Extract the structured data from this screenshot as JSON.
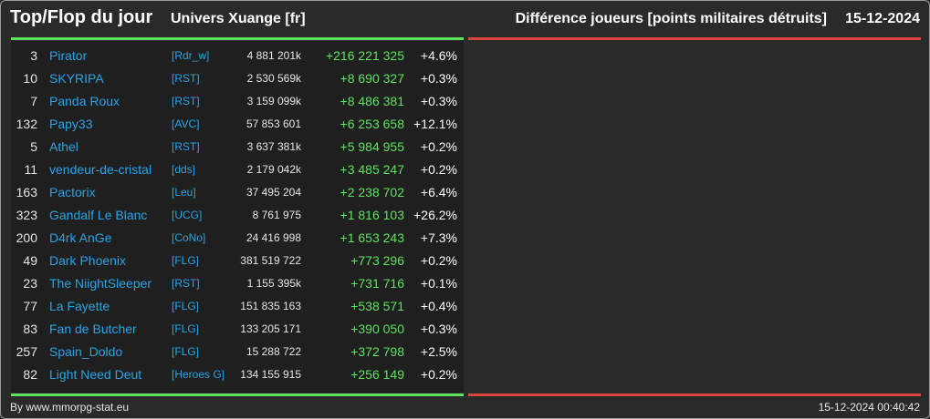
{
  "header": {
    "title": "Top/Flop du jour",
    "universe": "Univers Xuange [fr]",
    "metric": "Différence joueurs [points militaires détruits]",
    "date": "15-12-2024"
  },
  "colors": {
    "background": "#2a2a2a",
    "panel": "#1f1f1f",
    "top_accent": "#5de35d",
    "flop_accent": "#e0453d",
    "link": "#2aa3e6",
    "positive": "#5de35d"
  },
  "top": [
    {
      "rank": "3",
      "name": "Pirator",
      "alliance": "[Rdr_w]",
      "points": "4 881 201k",
      "diff": "+216 221 325",
      "pct": "+4.6%"
    },
    {
      "rank": "10",
      "name": "SKYRIPA",
      "alliance": "[RST]",
      "points": "2 530 569k",
      "diff": "+8 690 327",
      "pct": "+0.3%"
    },
    {
      "rank": "7",
      "name": "Panda Roux",
      "alliance": "[RST]",
      "points": "3 159 099k",
      "diff": "+8 486 381",
      "pct": "+0.3%"
    },
    {
      "rank": "132",
      "name": "Papy33",
      "alliance": "[AVC]",
      "points": "57 853 601",
      "diff": "+6 253 658",
      "pct": "+12.1%"
    },
    {
      "rank": "5",
      "name": "Athel",
      "alliance": "[RST]",
      "points": "3 637 381k",
      "diff": "+5 984 955",
      "pct": "+0.2%"
    },
    {
      "rank": "11",
      "name": "vendeur-de-cristal",
      "alliance": "[dds]",
      "points": "2 179 042k",
      "diff": "+3 485 247",
      "pct": "+0.2%"
    },
    {
      "rank": "163",
      "name": "Pactorix",
      "alliance": "[Leu]",
      "points": "37 495 204",
      "diff": "+2 238 702",
      "pct": "+6.4%"
    },
    {
      "rank": "323",
      "name": "Gandalf Le Blanc",
      "alliance": "[UCG]",
      "points": "8 761 975",
      "diff": "+1 816 103",
      "pct": "+26.2%"
    },
    {
      "rank": "200",
      "name": "D4rk AnGe",
      "alliance": "[CoNo]",
      "points": "24 416 998",
      "diff": "+1 653 243",
      "pct": "+7.3%"
    },
    {
      "rank": "49",
      "name": "Dark Phoenix",
      "alliance": "[FLG]",
      "points": "381 519 722",
      "diff": "+773 296",
      "pct": "+0.2%"
    },
    {
      "rank": "23",
      "name": "The NiightSleeper",
      "alliance": "[RST]",
      "points": "1 155 395k",
      "diff": "+731 716",
      "pct": "+0.1%"
    },
    {
      "rank": "77",
      "name": "La Fayette",
      "alliance": "[FLG]",
      "points": "151 835 163",
      "diff": "+538 571",
      "pct": "+0.4%"
    },
    {
      "rank": "83",
      "name": "Fan de Butcher",
      "alliance": "[FLG]",
      "points": "133 205 171",
      "diff": "+390 050",
      "pct": "+0.3%"
    },
    {
      "rank": "257",
      "name": "Spain_Doldo",
      "alliance": "[FLG]",
      "points": "15 288 722",
      "diff": "+372 798",
      "pct": "+2.5%"
    },
    {
      "rank": "82",
      "name": "Light Need Deut",
      "alliance": "[Heroes G]",
      "points": "134 155 915",
      "diff": "+256 149",
      "pct": "+0.2%"
    }
  ],
  "flop": [],
  "footer": {
    "credit": "By www.mmorpg-stat.eu",
    "timestamp": "15-12-2024 00:40:42"
  }
}
